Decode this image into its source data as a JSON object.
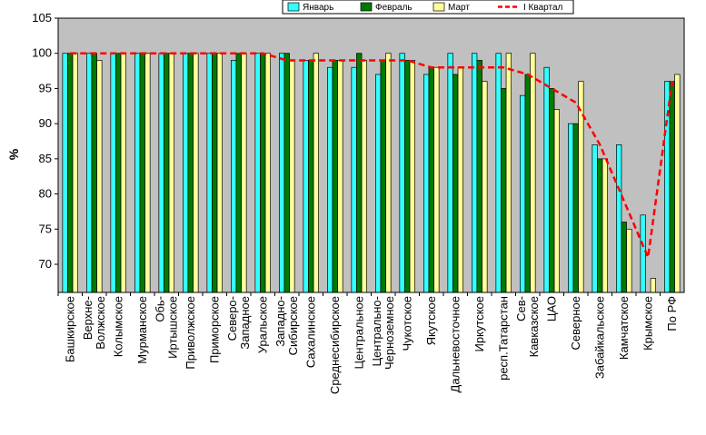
{
  "chart_data": {
    "type": "bar",
    "title": "",
    "xlabel": "",
    "ylabel": "%",
    "ylim": [
      66,
      105
    ],
    "yticks": [
      70,
      75,
      80,
      85,
      90,
      95,
      100,
      105
    ],
    "grid": false,
    "legend_position": "top",
    "categories": [
      "Башкирское",
      "Верхне-Волжское",
      "Колымское",
      "Мурманское",
      "Обь-Иртышское",
      "Приволжское",
      "Приморское",
      "Северо-Западное",
      "Уральское",
      "Западно-Сибирское",
      "Сахалинское",
      "Среднесибирское",
      "Центральное",
      "Центрально-Черноземное",
      "Чукотское",
      "Якутское",
      "Дальневосточное",
      "Иркутское",
      "респ.Татарстан",
      "Сев-Кавказское",
      "ЦАО",
      "Северное",
      "Забайкальское",
      "Камчатское",
      "Крымское",
      "По РФ"
    ],
    "series": [
      {
        "name": "Январь",
        "type": "bar",
        "color": "#33ffff",
        "values": [
          100,
          100,
          100,
          100,
          100,
          100,
          100,
          99,
          100,
          100,
          99,
          98,
          98,
          97,
          100,
          97,
          100,
          100,
          100,
          94,
          98,
          90,
          87,
          87,
          77,
          96
        ]
      },
      {
        "name": "Февраль",
        "type": "bar",
        "color": "#007a00",
        "values": [
          100,
          100,
          100,
          100,
          100,
          100,
          100,
          100,
          100,
          100,
          99,
          99,
          100,
          99,
          99,
          98,
          97,
          99,
          95,
          97,
          95,
          90,
          85,
          76,
          66,
          96
        ]
      },
      {
        "name": "Март",
        "type": "bar",
        "color": "#ffff99",
        "values": [
          100,
          99,
          100,
          100,
          100,
          100,
          100,
          100,
          100,
          99,
          100,
          99,
          99,
          100,
          99,
          98,
          98,
          96,
          100,
          100,
          92,
          96,
          85,
          75,
          68,
          97
        ]
      },
      {
        "name": "I Квартал",
        "type": "line",
        "color": "#ff0000",
        "values": [
          100,
          100,
          100,
          100,
          100,
          100,
          100,
          100,
          100,
          99,
          99,
          99,
          99,
          99,
          99,
          98,
          98,
          98,
          98,
          97,
          95,
          93,
          87,
          79,
          71,
          96
        ]
      }
    ]
  }
}
